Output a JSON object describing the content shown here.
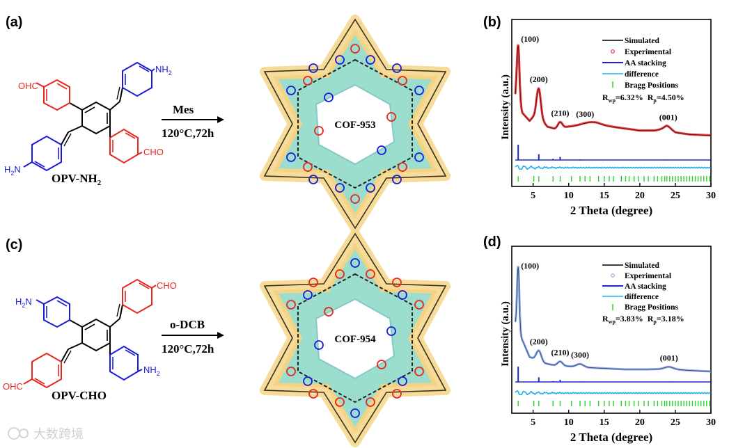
{
  "figure": {
    "panel_a": {
      "label": "(a)",
      "monomer_name": "OPV-NH",
      "monomer_subscript": "2",
      "group_top_left": "OHC",
      "group_top_right": "NH",
      "group_top_right_sub": "2",
      "group_bottom_left": "H",
      "group_bottom_left_sub": "2",
      "group_bottom_left_tail": "N",
      "group_bottom_right": "CHO",
      "solvent": "Mes",
      "conditions": "120°C,72h",
      "product": "COF-953"
    },
    "panel_c": {
      "label": "(c)",
      "monomer_name": "OPV-CHO",
      "group_top_left": "H",
      "group_top_left_sub": "2",
      "group_top_left_tail": "N",
      "group_top_right": "CHO",
      "group_bottom_left": "OHC",
      "group_bottom_right": "NH",
      "group_bottom_right_sub": "2",
      "solvent": "o-DCB",
      "conditions": "120°C,72h",
      "product": "COF-954"
    },
    "watermark": "大数跨境",
    "colors": {
      "aldehyde_red": "#e8251f",
      "amine_blue": "#1a1adb",
      "sim_line": "#000000",
      "exp_b": "#e31a1c",
      "exp_d": "#7ea2ee",
      "aa_stacking": "#1f25c8",
      "difference": "#22aee8",
      "bragg": "#2bd12b"
    }
  },
  "chart_data": [
    {
      "type": "line",
      "panel": "(b)",
      "xlabel": "2 Theta (degree)",
      "ylabel": "Intensity (a.u.)",
      "xlim": [
        2,
        30
      ],
      "xticks": [
        5,
        10,
        15,
        20,
        25,
        30
      ],
      "legend": [
        "Simulated",
        "Experimental",
        "AA stacking",
        "difference",
        "Bragg Positions"
      ],
      "legend_position": "top-right",
      "stats": {
        "rwp_prefix": "R",
        "rwp_sub": "wp",
        "rwp_value": "=6.32%",
        "rp_prefix": "R",
        "rp_sub": "p",
        "rp_value": "=4.50%"
      },
      "peak_labels": [
        {
          "text": "(100)",
          "x": 2.9
        },
        {
          "text": "(200)",
          "x": 5.8
        },
        {
          "text": "(210)",
          "x": 8.8
        },
        {
          "text": "(300)",
          "x": 12.3
        },
        {
          "text": "(001)",
          "x": 24.0
        }
      ],
      "experimental": {
        "baseline": [
          [
            2.0,
            0.46
          ],
          [
            2.3,
            0.42
          ],
          [
            2.6,
            0.52
          ],
          [
            3.5,
            0.34
          ],
          [
            4.5,
            0.26
          ],
          [
            5.5,
            0.34
          ],
          [
            7.0,
            0.2
          ],
          [
            8.0,
            0.18
          ],
          [
            10,
            0.2
          ],
          [
            12,
            0.21
          ],
          [
            14,
            0.22
          ],
          [
            16,
            0.2
          ],
          [
            18,
            0.18
          ],
          [
            20,
            0.16
          ],
          [
            22,
            0.16
          ],
          [
            23.8,
            0.18
          ],
          [
            25,
            0.14
          ],
          [
            27,
            0.12
          ],
          [
            30,
            0.11
          ]
        ],
        "peaks": [
          [
            2.9,
            0.58,
            0.18
          ],
          [
            5.8,
            0.28,
            0.28
          ],
          [
            8.8,
            0.06,
            0.3
          ],
          [
            13.0,
            0.03,
            1.2
          ],
          [
            23.9,
            0.03,
            0.5
          ]
        ]
      },
      "aa_stacking_peaks": [
        [
          2.9,
          1.0
        ],
        [
          5.8,
          0.38
        ],
        [
          7.8,
          0.08
        ],
        [
          8.8,
          0.2
        ],
        [
          11.6,
          0.04
        ],
        [
          23.5,
          0.03
        ]
      ],
      "bragg_positions": [
        2.9,
        5.1,
        5.8,
        7.8,
        8.8,
        10.4,
        11.6,
        12.3,
        13.0,
        14.2,
        15.0,
        15.7,
        16.3,
        17.4,
        18.0,
        18.5,
        19.2,
        19.8,
        20.6,
        21.2,
        22.0,
        22.5,
        23.1,
        23.5,
        23.8,
        24.2,
        24.6,
        25.0,
        25.4,
        25.8,
        26.2,
        26.6,
        27.0,
        27.4,
        27.8,
        28.2,
        28.6,
        29.0,
        29.4,
        29.8
      ]
    },
    {
      "type": "line",
      "panel": "(d)",
      "xlabel": "2 Theta (degree)",
      "ylabel": "Intensity (a.u.)",
      "xlim": [
        2,
        30
      ],
      "xticks": [
        5,
        10,
        15,
        20,
        25,
        30
      ],
      "legend": [
        "Simulated",
        "Experimental",
        "AA stacking",
        "difference",
        "Bragg Positions"
      ],
      "legend_position": "top-right",
      "stats": {
        "rwp_prefix": "R",
        "rwp_sub": "wp",
        "rwp_value": "=3.83%",
        "rp_prefix": "R",
        "rp_sub": "p",
        "rp_value": "=3.18%"
      },
      "peak_labels": [
        {
          "text": "(100)",
          "x": 2.9
        },
        {
          "text": "(200)",
          "x": 5.8
        },
        {
          "text": "(210)",
          "x": 8.8
        },
        {
          "text": "(300)",
          "x": 11.6
        },
        {
          "text": "(001)",
          "x": 24.1
        }
      ],
      "experimental": {
        "baseline": [
          [
            2.0,
            0.4
          ],
          [
            2.5,
            0.45
          ],
          [
            3.5,
            0.3
          ],
          [
            4.5,
            0.14
          ],
          [
            6.5,
            0.08
          ],
          [
            8.0,
            0.06
          ],
          [
            10,
            0.05
          ],
          [
            12,
            0.04
          ],
          [
            15,
            0.03
          ],
          [
            18,
            0.02
          ],
          [
            21,
            0.02
          ],
          [
            24,
            0.025
          ],
          [
            27,
            0.01
          ],
          [
            30,
            0.0
          ]
        ],
        "peaks": [
          [
            2.9,
            0.62,
            0.16
          ],
          [
            5.8,
            0.1,
            0.35
          ],
          [
            8.8,
            0.04,
            0.35
          ],
          [
            11.6,
            0.03,
            0.5
          ],
          [
            24.1,
            0.02,
            0.6
          ]
        ]
      },
      "aa_stacking_peaks": [
        [
          2.9,
          1.0
        ],
        [
          5.8,
          0.3
        ],
        [
          7.8,
          0.05
        ],
        [
          8.8,
          0.14
        ],
        [
          11.6,
          0.03
        ],
        [
          24.2,
          0.03
        ]
      ],
      "bragg_positions": [
        2.9,
        5.1,
        5.8,
        7.8,
        8.8,
        10.4,
        11.6,
        12.3,
        13.0,
        14.2,
        15.0,
        15.7,
        16.3,
        17.4,
        18.0,
        18.5,
        19.2,
        19.8,
        20.6,
        21.2,
        22.0,
        22.5,
        23.1,
        23.5,
        23.8,
        24.2,
        24.6,
        25.0,
        25.4,
        25.8,
        26.2,
        26.6,
        27.0,
        27.4,
        27.8,
        28.2,
        28.6,
        29.0,
        29.4,
        29.8
      ]
    }
  ]
}
